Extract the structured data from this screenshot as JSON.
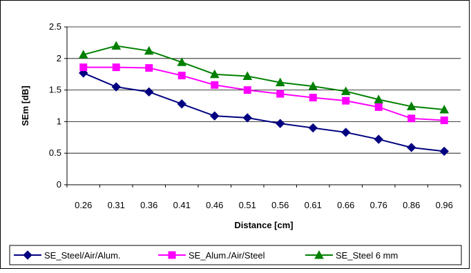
{
  "chart_data": {
    "type": "line",
    "categories": [
      "0.26",
      "0.31",
      "0.36",
      "0.41",
      "0.46",
      "0.51",
      "0.56",
      "0.61",
      "0.66",
      "0.76",
      "0.86",
      "0.96"
    ],
    "xlabel": "Distance [cm]",
    "ylabel": "SEm [dB]",
    "ylim": [
      0,
      2.5
    ],
    "yticks": [
      "0",
      "0.5",
      "1",
      "1.5",
      "2",
      "2.5"
    ],
    "grid": true,
    "legend_position": "bottom",
    "series": [
      {
        "name": "SE_Steel/Air/Alum.",
        "color": "#000080",
        "marker": "diamond",
        "values": [
          1.77,
          1.55,
          1.47,
          1.28,
          1.09,
          1.06,
          0.97,
          0.9,
          0.83,
          0.72,
          0.59,
          0.53
        ]
      },
      {
        "name": "SE_Alum./Air/Steel",
        "color": "#FF00FF",
        "marker": "square",
        "values": [
          1.86,
          1.86,
          1.85,
          1.73,
          1.58,
          1.5,
          1.44,
          1.38,
          1.33,
          1.23,
          1.05,
          1.02
        ]
      },
      {
        "name": "SE_Steel 6 mm",
        "color": "#008000",
        "marker": "triangle",
        "values": [
          2.06,
          2.2,
          2.12,
          1.94,
          1.75,
          1.72,
          1.62,
          1.56,
          1.48,
          1.35,
          1.24,
          1.19
        ]
      }
    ]
  }
}
